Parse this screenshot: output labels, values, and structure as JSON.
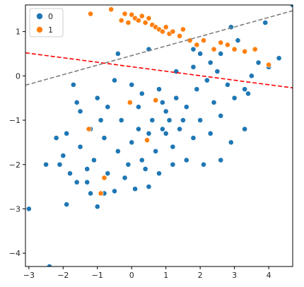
{
  "chart_data": {
    "type": "scatter",
    "title": "",
    "xlabel": "",
    "ylabel": "",
    "xlim": [
      -3.1,
      4.7
    ],
    "ylim": [
      -4.3,
      1.6
    ],
    "xticks": [
      -3,
      -2,
      -1,
      0,
      1,
      2,
      3,
      4
    ],
    "yticks": [
      -4,
      -3,
      -2,
      -1,
      0,
      1
    ],
    "xtick_labels": [
      "−3",
      "−2",
      "−1",
      "0",
      "1",
      "2",
      "3",
      "4"
    ],
    "ytick_labels": [
      "−4",
      "−3",
      "−2",
      "−1",
      "0",
      "1"
    ],
    "grid": false,
    "legend": {
      "location": "upper left",
      "entries": [
        "0",
        "1"
      ]
    },
    "colors": {
      "class_0": "#1f77b4",
      "class_1": "#ff7f0e",
      "line_red": "#ff0000",
      "line_gray": "#808080"
    },
    "lines": [
      {
        "style": "dashed",
        "color": "red",
        "points": [
          [
            -3.1,
            0.52
          ],
          [
            4.7,
            -0.27
          ]
        ]
      },
      {
        "style": "dashed",
        "color": "gray",
        "points": [
          [
            -3.1,
            -0.21
          ],
          [
            4.7,
            1.47
          ]
        ]
      }
    ],
    "series": [
      {
        "name": "0",
        "color": "#1f77b4",
        "points": [
          [
            -2.4,
            -4.3
          ],
          [
            -3.0,
            -3.0
          ],
          [
            -1.0,
            -2.95
          ],
          [
            -1.9,
            -2.9
          ],
          [
            -0.8,
            -2.65
          ],
          [
            -1.2,
            -2.65
          ],
          [
            -0.5,
            -2.6
          ],
          [
            0.1,
            -2.55
          ],
          [
            -1.6,
            -2.4
          ],
          [
            -0.7,
            -2.2
          ],
          [
            -1.8,
            -2.2
          ],
          [
            -2.1,
            -2.0
          ],
          [
            -1.3,
            -2.1
          ],
          [
            -0.2,
            -2.3
          ],
          [
            0.5,
            -2.5
          ],
          [
            -2.0,
            -1.8
          ],
          [
            -1.5,
            -1.6
          ],
          [
            0.3,
            -1.9
          ],
          [
            0.8,
            -2.2
          ],
          [
            1.2,
            -2.0
          ],
          [
            1.6,
            -1.9
          ],
          [
            2.1,
            -2.0
          ],
          [
            2.6,
            -1.9
          ],
          [
            2.9,
            -1.5
          ],
          [
            3.3,
            -1.2
          ],
          [
            3.4,
            -0.4
          ],
          [
            3.7,
            0.3
          ],
          [
            4.0,
            0.2
          ],
          [
            4.3,
            0.4
          ],
          [
            3.9,
            1.2
          ],
          [
            4.7,
            1.6
          ],
          [
            2.9,
            1.1
          ],
          [
            3.1,
            0.8
          ],
          [
            2.6,
            0.5
          ],
          [
            1.8,
            0.6
          ],
          [
            0.5,
            0.6
          ],
          [
            -0.4,
            0.5
          ],
          [
            -1.7,
            -0.2
          ],
          [
            -1.6,
            -0.6
          ],
          [
            -1.0,
            -0.5
          ],
          [
            -1.5,
            -0.8
          ],
          [
            -1.9,
            -1.3
          ],
          [
            -1.2,
            -1.2
          ],
          [
            -0.7,
            -0.7
          ],
          [
            -0.5,
            -0.1
          ],
          [
            0.0,
            -0.2
          ],
          [
            0.3,
            -0.4
          ],
          [
            0.8,
            -0.3
          ],
          [
            1.3,
            0.1
          ],
          [
            1.8,
            0.2
          ],
          [
            2.2,
            -0.1
          ],
          [
            2.8,
            -0.2
          ],
          [
            3.3,
            -0.3
          ],
          [
            1.0,
            -0.8
          ],
          [
            1.6,
            -0.7
          ],
          [
            2.4,
            -0.6
          ],
          [
            2.0,
            -1.0
          ],
          [
            0.6,
            -1.0
          ],
          [
            0.2,
            -1.2
          ],
          [
            -0.3,
            -1.0
          ],
          [
            -0.8,
            -1.4
          ],
          [
            -0.4,
            -1.7
          ],
          [
            0.0,
            -1.5
          ],
          [
            0.5,
            -1.3
          ],
          [
            1.0,
            -1.3
          ],
          [
            1.4,
            -1.2
          ],
          [
            1.8,
            -1.4
          ],
          [
            2.3,
            -1.3
          ],
          [
            0.7,
            -1.7
          ],
          [
            1.2,
            -1.6
          ],
          [
            -0.1,
            -2.0
          ],
          [
            0.4,
            -2.1
          ],
          [
            1.5,
            -1.0
          ],
          [
            1.1,
            -1.0
          ],
          [
            0.9,
            -1.2
          ],
          [
            1.3,
            -0.5
          ],
          [
            2.6,
            -0.9
          ],
          [
            3.0,
            -0.5
          ],
          [
            -1.3,
            -2.4
          ],
          [
            -0.9,
            -1.0
          ],
          [
            0.2,
            -0.7
          ],
          [
            0.9,
            -0.6
          ],
          [
            1.9,
            -0.3
          ],
          [
            2.5,
            0.1
          ],
          [
            -2.2,
            -1.4
          ],
          [
            -2.5,
            -2.0
          ],
          [
            2.0,
            0.5
          ],
          [
            2.3,
            0.3
          ],
          [
            3.5,
            0.0
          ],
          [
            -1.1,
            -1.9
          ]
        ]
      },
      {
        "name": "1",
        "color": "#ff7f0e",
        "points": [
          [
            -1.2,
            1.4
          ],
          [
            -0.6,
            1.5
          ],
          [
            -0.2,
            1.4
          ],
          [
            -0.3,
            1.25
          ],
          [
            -0.1,
            1.2
          ],
          [
            0.0,
            1.38
          ],
          [
            0.1,
            1.3
          ],
          [
            0.2,
            1.25
          ],
          [
            0.3,
            1.35
          ],
          [
            0.4,
            1.2
          ],
          [
            0.5,
            1.3
          ],
          [
            0.6,
            1.15
          ],
          [
            0.7,
            1.1
          ],
          [
            0.8,
            1.05
          ],
          [
            0.9,
            1.0
          ],
          [
            1.0,
            1.1
          ],
          [
            1.1,
            0.95
          ],
          [
            1.2,
            1.0
          ],
          [
            1.4,
            0.9
          ],
          [
            1.5,
            1.05
          ],
          [
            1.7,
            0.8
          ],
          [
            1.9,
            0.7
          ],
          [
            2.1,
            0.8
          ],
          [
            2.4,
            0.6
          ],
          [
            2.6,
            0.75
          ],
          [
            2.8,
            0.7
          ],
          [
            3.0,
            0.6
          ],
          [
            3.3,
            0.55
          ],
          [
            3.6,
            0.6
          ],
          [
            4.0,
            0.25
          ],
          [
            0.7,
            -0.55
          ],
          [
            -0.05,
            -0.6
          ],
          [
            0.45,
            -1.45
          ],
          [
            -1.25,
            -1.2
          ],
          [
            -0.8,
            -2.3
          ],
          [
            -0.9,
            -2.65
          ]
        ]
      }
    ]
  }
}
